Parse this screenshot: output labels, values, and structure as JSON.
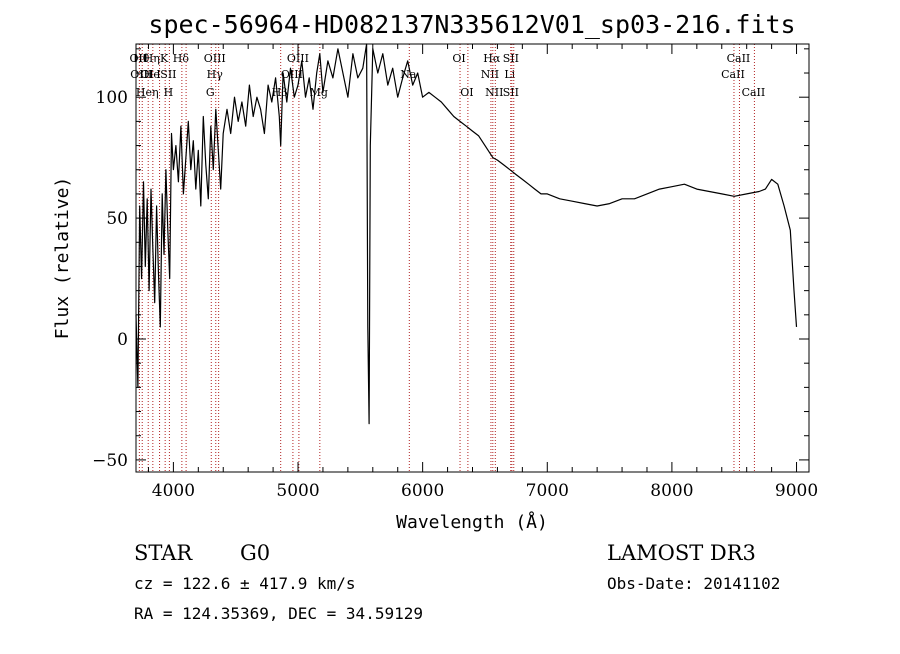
{
  "chart_data": {
    "type": "line",
    "title": "spec-56964-HD082137N335612V01_sp03-216.fits",
    "xlabel": "Wavelength (Å)",
    "ylabel": "Flux (relative)",
    "xlim": [
      3700,
      9100
    ],
    "ylim": [
      -55,
      122
    ],
    "x_ticks": [
      {
        "value": 4000,
        "label": "4000"
      },
      {
        "value": 5000,
        "label": "5000"
      },
      {
        "value": 6000,
        "label": "6000"
      },
      {
        "value": 7000,
        "label": "7000"
      },
      {
        "value": 8000,
        "label": "8000"
      },
      {
        "value": 9000,
        "label": "9000"
      }
    ],
    "y_ticks": [
      {
        "value": -50,
        "label": "−50"
      },
      {
        "value": 0,
        "label": "0"
      },
      {
        "value": 50,
        "label": "50"
      },
      {
        "value": 100,
        "label": "100"
      }
    ],
    "series": [
      {
        "name": "flux",
        "x": [
          3700,
          3715,
          3730,
          3745,
          3760,
          3775,
          3790,
          3805,
          3820,
          3835,
          3850,
          3865,
          3880,
          3895,
          3910,
          3925,
          3940,
          3955,
          3970,
          3985,
          4000,
          4020,
          4040,
          4060,
          4080,
          4100,
          4120,
          4140,
          4160,
          4180,
          4200,
          4220,
          4240,
          4260,
          4280,
          4300,
          4320,
          4340,
          4360,
          4380,
          4400,
          4430,
          4460,
          4490,
          4520,
          4550,
          4580,
          4610,
          4640,
          4670,
          4700,
          4730,
          4760,
          4790,
          4820,
          4850,
          4861,
          4880,
          4910,
          4940,
          4970,
          5000,
          5030,
          5060,
          5090,
          5120,
          5150,
          5175,
          5200,
          5240,
          5280,
          5320,
          5360,
          5400,
          5440,
          5480,
          5520,
          5550,
          5560,
          5570,
          5580,
          5600,
          5640,
          5680,
          5720,
          5760,
          5800,
          5840,
          5880,
          5920,
          5960,
          6000,
          6050,
          6100,
          6150,
          6200,
          6250,
          6300,
          6350,
          6400,
          6450,
          6500,
          6563,
          6600,
          6650,
          6700,
          6750,
          6800,
          6850,
          6900,
          6950,
          7000,
          7100,
          7200,
          7300,
          7400,
          7500,
          7600,
          7700,
          7800,
          7900,
          8000,
          8100,
          8200,
          8300,
          8400,
          8500,
          8600,
          8700,
          8750,
          8800,
          8850,
          8900,
          8950,
          8980,
          9000
        ],
        "y": [
          10,
          -20,
          55,
          25,
          65,
          30,
          58,
          20,
          62,
          38,
          15,
          55,
          28,
          5,
          60,
          35,
          70,
          45,
          25,
          85,
          70,
          80,
          65,
          88,
          60,
          75,
          90,
          70,
          82,
          62,
          78,
          55,
          92,
          72,
          58,
          88,
          70,
          95,
          78,
          62,
          85,
          95,
          85,
          100,
          90,
          98,
          88,
          105,
          92,
          100,
          95,
          85,
          105,
          98,
          108,
          92,
          80,
          110,
          98,
          112,
          100,
          105,
          115,
          100,
          108,
          95,
          110,
          118,
          102,
          115,
          108,
          120,
          110,
          100,
          118,
          108,
          112,
          122,
          5,
          -35,
          80,
          120,
          110,
          118,
          105,
          112,
          100,
          108,
          115,
          105,
          110,
          100,
          102,
          100,
          98,
          95,
          92,
          90,
          88,
          86,
          84,
          80,
          75,
          74,
          72,
          70,
          68,
          66,
          64,
          62,
          60,
          60,
          58,
          57,
          56,
          55,
          56,
          58,
          58,
          60,
          62,
          63,
          64,
          62,
          61,
          60,
          59,
          60,
          61,
          62,
          66,
          64,
          55,
          45,
          20,
          5
        ]
      }
    ],
    "lines": [
      {
        "x": 3727,
        "top": "OII",
        "mid": null,
        "bottom": null
      },
      {
        "x": 3750,
        "top": "Hθ",
        "mid": "OIII",
        "bottom": null
      },
      {
        "x": 3798,
        "top": null,
        "mid": "OI",
        "bottom": "Heη"
      },
      {
        "x": 3835,
        "top": "Hη",
        "mid": "He",
        "bottom": null
      },
      {
        "x": 3889,
        "top": null,
        "mid": "I",
        "bottom": null
      },
      {
        "x": 3934,
        "top": "K",
        "mid": null,
        "bottom": null
      },
      {
        "x": 3968,
        "top": null,
        "mid": "SII",
        "bottom": "H"
      },
      {
        "x": 4068,
        "top": "Hδ",
        "mid": null,
        "bottom": null
      },
      {
        "x": 4102,
        "top": null,
        "mid": null,
        "bottom": null
      },
      {
        "x": 4304,
        "top": null,
        "mid": null,
        "bottom": "G"
      },
      {
        "x": 4340,
        "top": "OIII",
        "mid": "Hγ",
        "bottom": null
      },
      {
        "x": 4363,
        "top": null,
        "mid": null,
        "bottom": null
      },
      {
        "x": 4861,
        "top": null,
        "mid": null,
        "bottom": "Hβ"
      },
      {
        "x": 4959,
        "top": null,
        "mid": "OIII",
        "bottom": null
      },
      {
        "x": 5007,
        "top": "OIII",
        "mid": null,
        "bottom": null
      },
      {
        "x": 5175,
        "top": null,
        "mid": null,
        "bottom": "Mg"
      },
      {
        "x": 5893,
        "top": null,
        "mid": "Na",
        "bottom": null
      },
      {
        "x": 6300,
        "top": "OI",
        "mid": null,
        "bottom": null
      },
      {
        "x": 6363,
        "top": null,
        "mid": null,
        "bottom": "OI"
      },
      {
        "x": 6548,
        "top": null,
        "mid": "NII",
        "bottom": null
      },
      {
        "x": 6563,
        "top": "Hα",
        "mid": null,
        "bottom": null
      },
      {
        "x": 6583,
        "top": null,
        "mid": null,
        "bottom": "NII"
      },
      {
        "x": 6707,
        "top": null,
        "mid": "Li",
        "bottom": null
      },
      {
        "x": 6716,
        "top": "SII",
        "mid": null,
        "bottom": "SII"
      },
      {
        "x": 6731,
        "top": null,
        "mid": null,
        "bottom": null
      },
      {
        "x": 8498,
        "top": null,
        "mid": "CaII",
        "bottom": null
      },
      {
        "x": 8542,
        "top": "CaII",
        "mid": null,
        "bottom": null
      },
      {
        "x": 8662,
        "top": null,
        "mid": null,
        "bottom": "CaII"
      }
    ]
  },
  "info": {
    "object_class": "STAR",
    "subclass": "G0",
    "survey": "LAMOST DR3",
    "cz": "cz = 122.6 ± 417.9 km/s",
    "obs_date": "Obs-Date: 20141102",
    "radec": "RA = 124.35369, DEC =  34.59129"
  },
  "colors": {
    "axis": "#000000",
    "spectrum": "#000000",
    "line_marker": "#b22222"
  }
}
